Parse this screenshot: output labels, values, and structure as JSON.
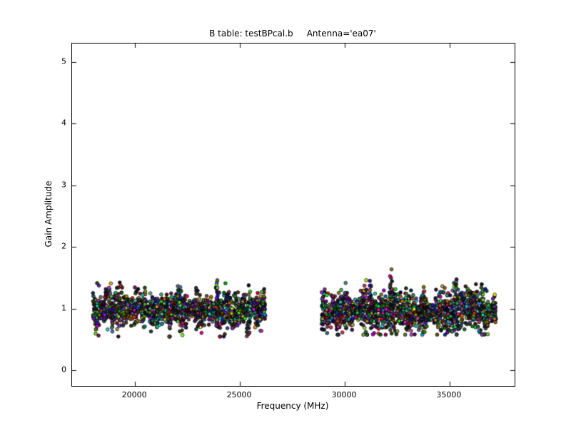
{
  "figure": {
    "title": "B table: testBPcal.b     Antenna='ea07'",
    "xlabel": "Frequency (MHz)",
    "ylabel": "Gain Amplitude",
    "background_color": "#ffffff",
    "axes_edge_color": "#000000"
  },
  "chart_data": {
    "type": "scatter",
    "title": "B table: testBPcal.b     Antenna='ea07'",
    "xlabel": "Frequency (MHz)",
    "ylabel": "Gain Amplitude",
    "xlim": [
      17000,
      38100
    ],
    "ylim": [
      -0.25,
      5.3
    ],
    "x_ticks": [
      20000,
      25000,
      30000,
      35000
    ],
    "y_ticks": [
      0,
      1,
      2,
      3,
      4,
      5
    ],
    "grid": false,
    "legend": false,
    "marker": {
      "shape": "circle",
      "radius_px": 2.4,
      "edge_color": "#000000",
      "fill": "random multicolor"
    },
    "seed": 42,
    "clusters": [
      {
        "name": "band-1",
        "x_range": [
          18000,
          26200
        ],
        "y_center": 0.97,
        "y_spread": 0.12,
        "y_min": 0.55,
        "y_max": 1.48,
        "n_points": 1500,
        "spikes": [
          {
            "x": 23900,
            "y_top": 1.45
          },
          {
            "x": 22100,
            "y_top": 1.38
          },
          {
            "x": 18800,
            "y_top": 1.42
          }
        ]
      },
      {
        "name": "band-2",
        "x_range": [
          28900,
          37200
        ],
        "y_center": 0.97,
        "y_spread": 0.13,
        "y_min": 0.58,
        "y_max": 1.62,
        "n_points": 1500,
        "spikes": [
          {
            "x": 32200,
            "y_top": 1.6
          },
          {
            "x": 31200,
            "y_top": 1.45
          },
          {
            "x": 35300,
            "y_top": 1.48
          }
        ]
      }
    ]
  }
}
